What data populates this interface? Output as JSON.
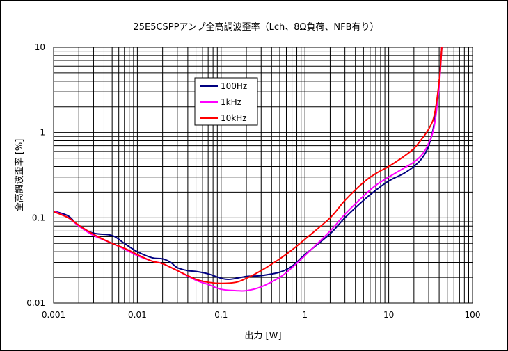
{
  "chart_data": {
    "type": "line",
    "title": "25E5CSPPアンプ全高調波歪率（Lch、8Ω負荷、NFB有り）",
    "xlabel": "出力 [W]",
    "ylabel": "全高調波歪率 [%]",
    "x_scale": "log",
    "y_scale": "log",
    "xlim": [
      0.001,
      100
    ],
    "ylim": [
      0.01,
      10
    ],
    "x_ticks": [
      "0.001",
      "0.01",
      "0.1",
      "1",
      "10",
      "100"
    ],
    "y_ticks": [
      "10",
      "1",
      "0.1",
      "0.01"
    ],
    "grid": true,
    "legend_position": "upper-left-center",
    "series": [
      {
        "name": "100Hz",
        "color": "#000080",
        "x": [
          0.001,
          0.0015,
          0.002,
          0.003,
          0.005,
          0.007,
          0.01,
          0.015,
          0.02,
          0.025,
          0.03,
          0.04,
          0.05,
          0.07,
          0.1,
          0.13,
          0.2,
          0.3,
          0.5,
          0.7,
          1,
          2,
          3,
          5,
          7,
          10,
          15,
          20,
          25,
          30,
          35,
          40,
          43
        ],
        "y": [
          0.12,
          0.105,
          0.08,
          0.066,
          0.062,
          0.05,
          0.04,
          0.034,
          0.033,
          0.03,
          0.026,
          0.024,
          0.0235,
          0.022,
          0.0195,
          0.019,
          0.0205,
          0.021,
          0.023,
          0.027,
          0.037,
          0.065,
          0.1,
          0.16,
          0.21,
          0.27,
          0.33,
          0.4,
          0.5,
          0.7,
          1.3,
          4.0,
          10
        ]
      },
      {
        "name": "1kHz",
        "color": "#ff00ff",
        "x": [
          0.001,
          0.0015,
          0.002,
          0.003,
          0.005,
          0.007,
          0.01,
          0.015,
          0.02,
          0.03,
          0.05,
          0.07,
          0.1,
          0.15,
          0.2,
          0.3,
          0.5,
          0.7,
          1,
          2,
          3,
          5,
          7,
          10,
          15,
          20,
          25,
          30,
          35,
          40,
          43
        ],
        "y": [
          0.12,
          0.1,
          0.08,
          0.062,
          0.05,
          0.043,
          0.036,
          0.031,
          0.029,
          0.024,
          0.0185,
          0.0165,
          0.0145,
          0.014,
          0.014,
          0.0155,
          0.02,
          0.026,
          0.036,
          0.07,
          0.11,
          0.18,
          0.24,
          0.3,
          0.38,
          0.45,
          0.55,
          0.75,
          1.2,
          3.5,
          10
        ]
      },
      {
        "name": "10kHz",
        "color": "#ff0000",
        "x": [
          0.001,
          0.0015,
          0.002,
          0.003,
          0.005,
          0.007,
          0.01,
          0.015,
          0.02,
          0.03,
          0.05,
          0.07,
          0.1,
          0.15,
          0.2,
          0.3,
          0.5,
          0.7,
          1,
          2,
          3,
          5,
          7,
          10,
          15,
          20,
          25,
          30,
          35,
          40,
          43
        ],
        "y": [
          0.118,
          0.1,
          0.082,
          0.064,
          0.05,
          0.044,
          0.037,
          0.031,
          0.029,
          0.024,
          0.019,
          0.0175,
          0.017,
          0.0175,
          0.0195,
          0.024,
          0.033,
          0.042,
          0.056,
          0.1,
          0.16,
          0.26,
          0.33,
          0.4,
          0.52,
          0.65,
          0.85,
          1.1,
          1.6,
          4.0,
          10
        ]
      }
    ]
  }
}
